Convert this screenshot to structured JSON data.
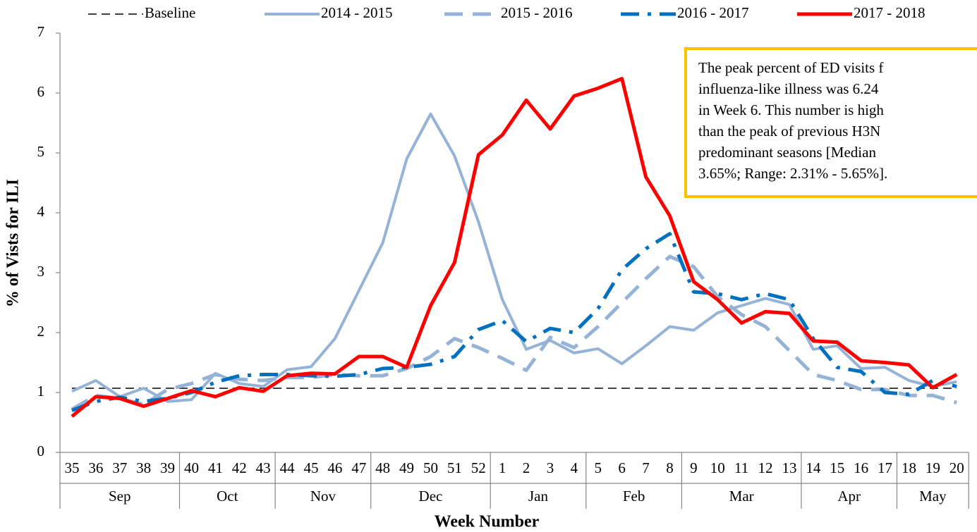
{
  "chart_data": {
    "type": "line",
    "y_label": "% of Vists for ILI",
    "x_label": "Week Number",
    "annotation": [
      "The peak percent of ED visits f",
      "influenza-like illness was 6.24",
      "in Week 6. This number is high",
      "than the peak of previous H3N",
      "predominant seasons [Median",
      "3.65%; Range: 2.31% - 5.65%]."
    ],
    "categories": [
      "35",
      "36",
      "37",
      "38",
      "39",
      "40",
      "41",
      "42",
      "43",
      "44",
      "45",
      "46",
      "47",
      "48",
      "49",
      "50",
      "51",
      "52",
      "1",
      "2",
      "3",
      "4",
      "5",
      "6",
      "7",
      "8",
      "9",
      "10",
      "11",
      "12",
      "13",
      "14",
      "15",
      "16",
      "17",
      "18",
      "19",
      "20"
    ],
    "months": [
      "Sep",
      null,
      null,
      null,
      null,
      "Oct",
      null,
      null,
      null,
      "Nov",
      null,
      null,
      null,
      "Dec",
      null,
      null,
      null,
      null,
      "Jan",
      null,
      null,
      null,
      "Feb",
      null,
      null,
      null,
      "Mar",
      null,
      null,
      null,
      null,
      "Apr",
      null,
      null,
      null,
      "May",
      null,
      null
    ],
    "ylim": [
      0,
      7
    ],
    "yticks": [
      0,
      1,
      2,
      3,
      4,
      5,
      6,
      7
    ],
    "series": [
      {
        "name": "Baseline",
        "color": "#404040",
        "dash": "12 7",
        "width": 2,
        "values": [
          1.07,
          1.07,
          1.07,
          1.07,
          1.07,
          1.07,
          1.07,
          1.07,
          1.07,
          1.07,
          1.07,
          1.07,
          1.07,
          1.07,
          1.07,
          1.07,
          1.07,
          1.07,
          1.07,
          1.07,
          1.07,
          1.07,
          1.07,
          1.07,
          1.07,
          1.07,
          1.07,
          1.07,
          1.07,
          1.07,
          1.07,
          1.07,
          1.07,
          1.07,
          1.07,
          1.07,
          1.07,
          1.07
        ]
      },
      {
        "name": "2014 - 2015",
        "color": "#95b3d7",
        "dash": "none",
        "width": 4,
        "values": [
          1.02,
          1.2,
          0.93,
          1.07,
          0.85,
          0.88,
          1.32,
          1.15,
          1.1,
          1.38,
          1.43,
          1.9,
          2.7,
          3.5,
          4.9,
          5.65,
          4.95,
          3.85,
          2.55,
          1.72,
          1.87,
          1.66,
          1.73,
          1.48,
          1.78,
          2.1,
          2.04,
          2.33,
          2.45,
          2.57,
          2.47,
          1.72,
          1.78,
          1.4,
          1.42,
          1.2,
          1.1,
          1.18
        ]
      },
      {
        "name": "2015 - 2016",
        "color": "#95b3d7",
        "dash": "26 14",
        "width": 5,
        "values": [
          0.72,
          0.95,
          0.9,
          0.8,
          1.05,
          1.15,
          1.3,
          1.22,
          1.2,
          1.25,
          1.25,
          1.3,
          1.28,
          1.28,
          1.4,
          1.6,
          1.9,
          1.75,
          1.57,
          1.37,
          1.92,
          1.75,
          2.1,
          2.5,
          2.9,
          3.27,
          3.1,
          2.6,
          2.3,
          2.1,
          1.7,
          1.3,
          1.2,
          1.05,
          1.05,
          0.95,
          0.95,
          0.83
        ]
      },
      {
        "name": "2016 - 2017",
        "color": "#0070c0",
        "dash": "26 12 5 12",
        "width": 5,
        "values": [
          0.7,
          0.85,
          0.92,
          0.85,
          0.9,
          1.0,
          1.17,
          1.28,
          1.3,
          1.3,
          1.28,
          1.27,
          1.3,
          1.4,
          1.42,
          1.47,
          1.6,
          2.05,
          2.2,
          1.85,
          2.07,
          2.0,
          2.4,
          3.05,
          3.4,
          3.65,
          2.68,
          2.65,
          2.55,
          2.65,
          2.55,
          1.9,
          1.42,
          1.35,
          1.0,
          0.97,
          1.2,
          1.1
        ]
      },
      {
        "name": "2017 - 2018",
        "color": "#ff0000",
        "dash": "none",
        "width": 5,
        "values": [
          0.6,
          0.93,
          0.9,
          0.77,
          0.9,
          1.03,
          0.93,
          1.08,
          1.02,
          1.28,
          1.32,
          1.31,
          1.6,
          1.6,
          1.42,
          2.45,
          3.17,
          4.97,
          5.3,
          5.88,
          5.4,
          5.95,
          6.08,
          6.24,
          4.6,
          3.95,
          2.85,
          2.55,
          2.16,
          2.35,
          2.32,
          1.86,
          1.84,
          1.53,
          1.5,
          1.46,
          1.08,
          1.3
        ]
      }
    ]
  }
}
